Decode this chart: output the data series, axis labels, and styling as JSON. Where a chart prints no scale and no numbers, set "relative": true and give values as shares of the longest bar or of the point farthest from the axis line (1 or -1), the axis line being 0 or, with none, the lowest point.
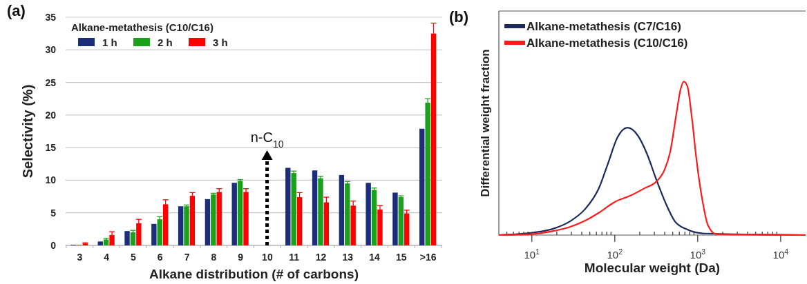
{
  "chart_data": [
    {
      "type": "bar",
      "xlabel": "Alkane distribution (# of carbons)",
      "ylabel": "Selectivity (%)",
      "legend_title": "Alkane-metathesis (C10/C16)",
      "categories": [
        "3",
        "4",
        "5",
        "6",
        "7",
        "8",
        "9",
        "10",
        "11",
        "12",
        "13",
        "14",
        "15",
        ">16"
      ],
      "series": [
        {
          "name": "1 h",
          "color": "#1c2d7a",
          "values": [
            0.1,
            0.6,
            2.2,
            3.3,
            6.0,
            7.1,
            9.6,
            null,
            11.9,
            11.5,
            10.8,
            9.6,
            8.1,
            17.9
          ]
        },
        {
          "name": "2 h",
          "color": "#1aa01a",
          "values": [
            0.1,
            0.9,
            2.0,
            4.0,
            6.0,
            7.8,
            9.9,
            null,
            11.1,
            10.3,
            9.5,
            8.5,
            7.4,
            21.9
          ],
          "errors": [
            null,
            0.2,
            0.3,
            0.4,
            0.2,
            0.2,
            0.2,
            null,
            0.3,
            0.3,
            0.3,
            0.3,
            0.2,
            0.6
          ]
        },
        {
          "name": "3 h",
          "color": "#ff0000",
          "values": [
            0.3,
            1.6,
            3.4,
            6.3,
            7.6,
            8.2,
            8.2,
            null,
            7.4,
            6.6,
            6.1,
            5.5,
            4.9,
            32.5
          ],
          "errors": [
            0.1,
            0.5,
            0.6,
            0.7,
            0.5,
            0.5,
            0.5,
            null,
            0.7,
            0.8,
            0.7,
            0.6,
            0.5,
            1.6
          ]
        }
      ],
      "ylim": [
        0,
        35
      ],
      "yticks": [
        0,
        5,
        10,
        15,
        20,
        25,
        30,
        35
      ],
      "grid": "y",
      "legend": "top left",
      "annotations": [
        "(a)",
        "n-C$_{10}$"
      ]
    },
    {
      "type": "line",
      "xlabel": "Molecular weight (Da)",
      "ylabel": "Differential weight fraction",
      "log": "x",
      "relative": true,
      "xlim": [
        4,
        20000
      ],
      "xticks": [
        {
          "value": 5,
          "label": null
        },
        {
          "value": 6,
          "label": null
        },
        {
          "value": 7,
          "label": null
        },
        {
          "value": 8,
          "label": null
        },
        {
          "value": 9,
          "label": null
        },
        {
          "value": 10,
          "label": "10$^{1}$"
        },
        {
          "value": 20,
          "label": null
        },
        {
          "value": 30,
          "label": null
        },
        {
          "value": 40,
          "label": null
        },
        {
          "value": 50,
          "label": null
        },
        {
          "value": 60,
          "label": null
        },
        {
          "value": 70,
          "label": null
        },
        {
          "value": 80,
          "label": null
        },
        {
          "value": 90,
          "label": null
        },
        {
          "value": 100,
          "label": "10$^{2}$"
        },
        {
          "value": 200,
          "label": null
        },
        {
          "value": 300,
          "label": null
        },
        {
          "value": 400,
          "label": null
        },
        {
          "value": 500,
          "label": null
        },
        {
          "value": 600,
          "label": null
        },
        {
          "value": 700,
          "label": null
        },
        {
          "value": 800,
          "label": null
        },
        {
          "value": 900,
          "label": null
        },
        {
          "value": 1000,
          "label": "10$^{3}$"
        },
        {
          "value": 2000,
          "label": null
        },
        {
          "value": 3000,
          "label": null
        },
        {
          "value": 4000,
          "label": null
        },
        {
          "value": 5000,
          "label": null
        },
        {
          "value": 6000,
          "label": null
        },
        {
          "value": 7000,
          "label": null
        },
        {
          "value": 8000,
          "label": null
        },
        {
          "value": 9000,
          "label": null
        },
        {
          "value": 10000,
          "label": "10$^{4}$"
        }
      ],
      "series": [
        {
          "name": "Alkane-metathesis (C7/C16)",
          "color": "#1b2a5a",
          "x": [
            4,
            10,
            17.8,
            29.5,
            43.6,
            64,
            83,
            107,
            142,
            190,
            245,
            316,
            407,
            525,
            720,
            1200,
            20000
          ],
          "values": [
            0,
            0.015,
            0.04,
            0.093,
            0.168,
            0.303,
            0.468,
            0.633,
            0.7,
            0.648,
            0.528,
            0.363,
            0.213,
            0.093,
            0.04,
            0.01,
            0
          ]
        },
        {
          "name": "Alkane-metathesis (C10/C16)",
          "color": "#ff1a1a",
          "x": [
            4,
            10,
            17.8,
            29.5,
            43.6,
            64,
            100,
            156,
            230,
            316,
            396,
            466,
            550,
            620,
            680,
            750,
            855,
            970,
            1150,
            1330,
            1670,
            20000
          ],
          "values": [
            0,
            0.006,
            0.025,
            0.055,
            0.093,
            0.145,
            0.216,
            0.258,
            0.306,
            0.348,
            0.423,
            0.543,
            0.783,
            0.948,
            1.0,
            0.97,
            0.753,
            0.483,
            0.213,
            0.063,
            0.006,
            0
          ]
        }
      ],
      "legend": "top left",
      "annotations": [
        "(b)"
      ]
    }
  ]
}
